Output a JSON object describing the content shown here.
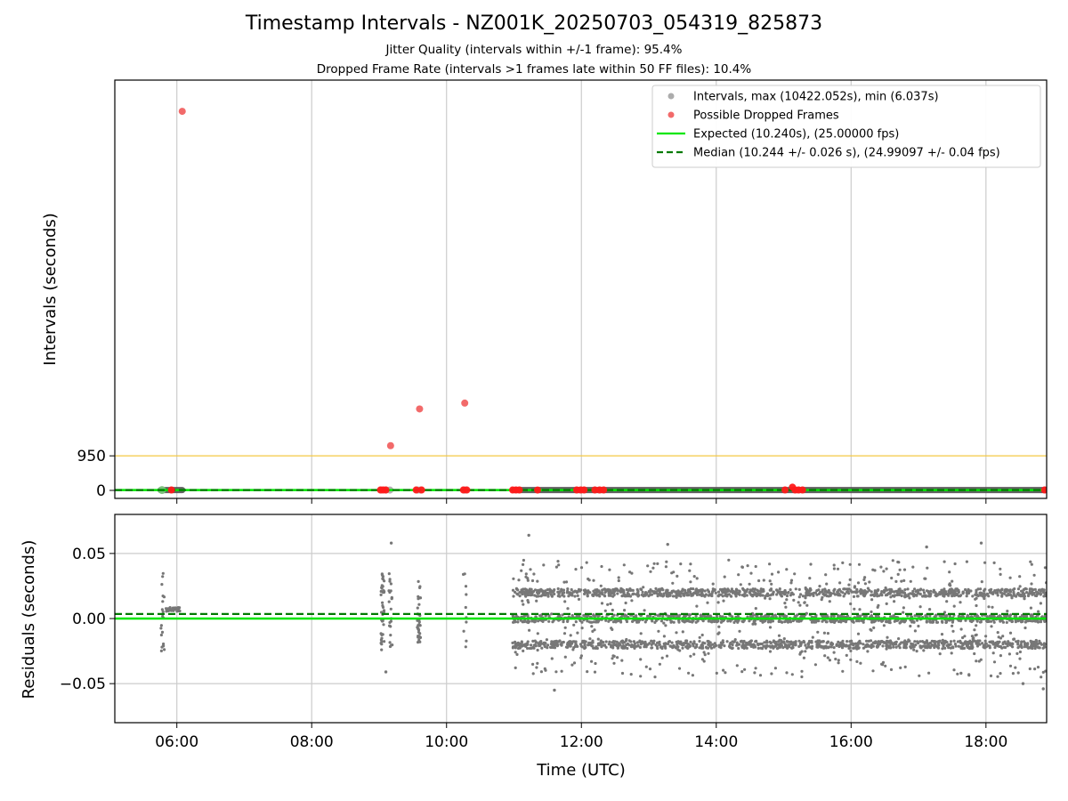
{
  "chart_data": [
    {
      "type": "scatter",
      "title": "Timestamp Intervals - NZ001K_20250703_054319_825873",
      "subtitle_lines": [
        "Jitter Quality (intervals within +/-1 frame): 95.4%",
        "Dropped Frame Rate (intervals >1 frames late within 50 FF files): 10.4%"
      ],
      "ylabel": "Intervals (seconds)",
      "xlim_hours": [
        5.08,
        18.9
      ],
      "ylim": [
        -220,
        11280
      ],
      "yticks": [
        {
          "value": 0,
          "label": "0"
        },
        {
          "value": 950,
          "label": "950"
        }
      ],
      "threshold_line": 950,
      "threshold_color": "#f5c842",
      "expected": 10.24,
      "median": 10.244,
      "grid": "x",
      "legend_position": "upper right",
      "legend": [
        {
          "label": "Intervals, max (10422.052s), min (6.037s)",
          "kind": "dot",
          "color": "#9e9e9e"
        },
        {
          "label": "Possible Dropped Frames",
          "kind": "dot",
          "color": "#f05050"
        },
        {
          "label": "Expected (10.240s), (25.00000 fps)",
          "kind": "line",
          "color": "#00e600"
        },
        {
          "label": "Median (10.244 +/- 0.026 s), (24.99097 +/- 0.04 fps)",
          "kind": "dashed",
          "color": "#007a00"
        }
      ],
      "dropped_points": [
        [
          6.08,
          10422
        ],
        [
          9.17,
          1230
        ],
        [
          9.6,
          2240
        ],
        [
          10.27,
          2400
        ],
        [
          11.35,
          10
        ],
        [
          15.13,
          90
        ],
        [
          15.02,
          12
        ],
        [
          5.92,
          12
        ],
        [
          9.02,
          12
        ],
        [
          9.06,
          12
        ],
        [
          9.1,
          12
        ],
        [
          9.55,
          12
        ],
        [
          9.63,
          12
        ],
        [
          10.25,
          12
        ],
        [
          10.3,
          12
        ],
        [
          10.98,
          12
        ],
        [
          11.03,
          12
        ],
        [
          11.08,
          12
        ],
        [
          11.93,
          12
        ],
        [
          11.99,
          12
        ],
        [
          12.04,
          12
        ],
        [
          12.2,
          12
        ],
        [
          12.27,
          12
        ],
        [
          12.33,
          12
        ],
        [
          15.17,
          12
        ],
        [
          15.22,
          12
        ],
        [
          15.28,
          12
        ],
        [
          18.87,
          12
        ]
      ],
      "interval_segments": [
        [
          5.76,
          6.08
        ],
        [
          11.0,
          18.9
        ]
      ],
      "interval_clusters": [
        5.78,
        9.03,
        9.1,
        9.16,
        9.57,
        9.61,
        10.26,
        10.28
      ]
    },
    {
      "type": "scatter",
      "xlabel": "Time (UTC)",
      "ylabel": "Residuals (seconds)",
      "ylim": [
        -0.08,
        0.08
      ],
      "yticks": [
        {
          "value": 0.05,
          "label": "0.05"
        },
        {
          "value": 0.0,
          "label": "0.00"
        },
        {
          "value": -0.05,
          "label": "−0.05"
        }
      ],
      "xticks": [
        {
          "value": 6,
          "label": "06:00"
        },
        {
          "value": 8,
          "label": "08:00"
        },
        {
          "value": 10,
          "label": "10:00"
        },
        {
          "value": 12,
          "label": "12:00"
        },
        {
          "value": 14,
          "label": "14:00"
        },
        {
          "value": 16,
          "label": "16:00"
        },
        {
          "value": 18,
          "label": "18:00"
        }
      ],
      "expected_residual": 0.0,
      "median_residual": 0.0035,
      "grid": "both",
      "point_color": "#777777",
      "residual_levels": [
        -0.02,
        0.0,
        0.02
      ],
      "residual_spread": 0.045,
      "dense_range_hours": [
        10.98,
        18.9
      ],
      "sparse_groups": [
        {
          "center": 5.79,
          "count": 18
        },
        {
          "center": 9.05,
          "count": 40
        },
        {
          "center": 9.17,
          "count": 22
        },
        {
          "center": 9.59,
          "count": 35
        },
        {
          "center": 10.27,
          "count": 10
        }
      ],
      "flat_run": {
        "from": 5.84,
        "to": 6.05,
        "value": 0.007
      },
      "outliers": [
        [
          11.22,
          0.064
        ],
        [
          13.28,
          0.057
        ],
        [
          17.12,
          0.055
        ],
        [
          17.93,
          0.058
        ],
        [
          11.6,
          -0.055
        ],
        [
          18.85,
          -0.054
        ],
        [
          17.63,
          -0.042
        ],
        [
          18.55,
          -0.05
        ],
        [
          9.18,
          0.058
        ],
        [
          9.1,
          -0.041
        ],
        [
          5.8,
          -0.021
        ]
      ]
    }
  ]
}
